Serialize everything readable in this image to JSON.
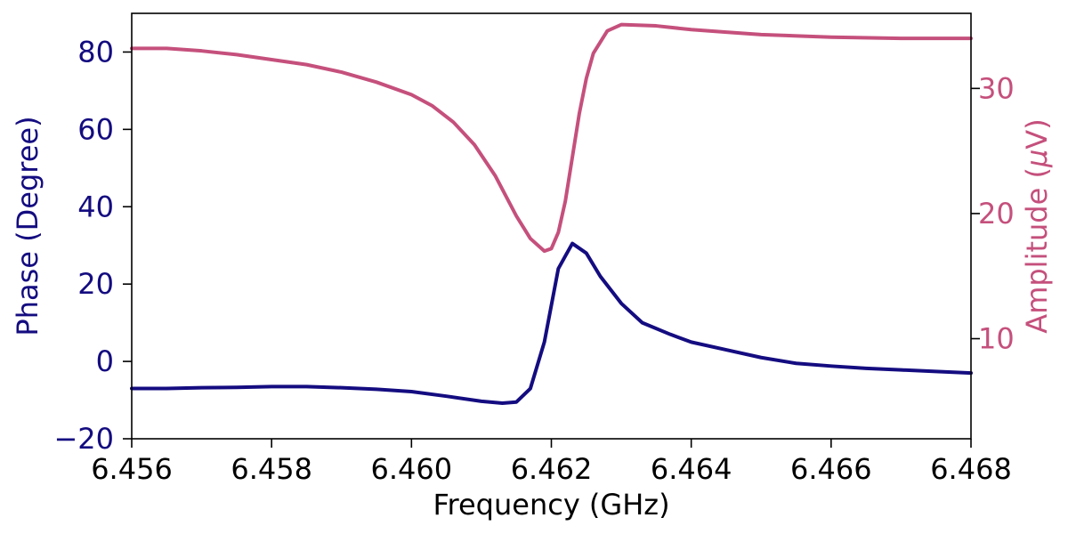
{
  "chart_data": {
    "type": "line",
    "title": "",
    "xlabel": "Frequency (GHz)",
    "ylabel_left": "Phase (Degree)",
    "ylabel_right_main": "Amplitude (",
    "ylabel_right_mu": "μ",
    "ylabel_right_unit": "V)",
    "xlim": [
      6.456,
      6.468
    ],
    "ylim_left": [
      -20,
      90
    ],
    "ylim_right": [
      2,
      36
    ],
    "x_ticks": [
      6.456,
      6.458,
      6.46,
      6.462,
      6.464,
      6.466,
      6.468
    ],
    "x_tick_labels": [
      "6.456",
      "6.458",
      "6.460",
      "6.462",
      "6.464",
      "6.466",
      "6.468"
    ],
    "y_left_ticks": [
      -20,
      0,
      20,
      40,
      60,
      80
    ],
    "y_left_tick_labels": [
      "−20",
      "0",
      "20",
      "40",
      "60",
      "80"
    ],
    "y_right_ticks": [
      10,
      20,
      30
    ],
    "y_right_tick_labels": [
      "10",
      "20",
      "30"
    ],
    "grid": false,
    "legend": "none",
    "colors": {
      "phase": "#140c80",
      "amplitude": "#c5507c",
      "axes": "#000000"
    },
    "series": [
      {
        "axis": "left",
        "x": [
          6.456,
          6.4565,
          6.457,
          6.4575,
          6.458,
          6.4585,
          6.459,
          6.4595,
          6.46,
          6.4605,
          6.461,
          6.4613,
          6.4615,
          6.4617,
          6.4619,
          6.4621,
          6.4623,
          6.4625,
          6.4627,
          6.463,
          6.4633,
          6.4637,
          6.464,
          6.4645,
          6.465,
          6.4655,
          6.466,
          6.4665,
          6.467,
          6.4675,
          6.468
        ],
        "y": [
          -7,
          -7,
          -6.8,
          -6.7,
          -6.5,
          -6.5,
          -6.8,
          -7.2,
          -7.8,
          -9,
          -10.3,
          -10.8,
          -10.5,
          -7,
          5,
          24,
          30.5,
          28,
          22,
          15,
          10,
          7,
          5,
          3,
          1,
          -0.5,
          -1.2,
          -1.8,
          -2.2,
          -2.6,
          -3
        ]
      },
      {
        "axis": "right",
        "x": [
          6.456,
          6.4565,
          6.457,
          6.4575,
          6.458,
          6.4585,
          6.459,
          6.4595,
          6.46,
          6.4603,
          6.4606,
          6.4609,
          6.4612,
          6.4615,
          6.4617,
          6.4619,
          6.462,
          6.4621,
          6.4622,
          6.4623,
          6.4624,
          6.4625,
          6.4626,
          6.4628,
          6.463,
          6.4635,
          6.464,
          6.4645,
          6.465,
          6.466,
          6.467,
          6.468
        ],
        "y": [
          33.2,
          33.2,
          33,
          32.7,
          32.3,
          31.9,
          31.3,
          30.5,
          29.5,
          28.6,
          27.3,
          25.5,
          23,
          19.8,
          18,
          17,
          17.2,
          18.5,
          21,
          24.5,
          28,
          30.8,
          32.8,
          34.6,
          35.1,
          35,
          34.7,
          34.5,
          34.3,
          34.1,
          34,
          34
        ]
      }
    ]
  }
}
